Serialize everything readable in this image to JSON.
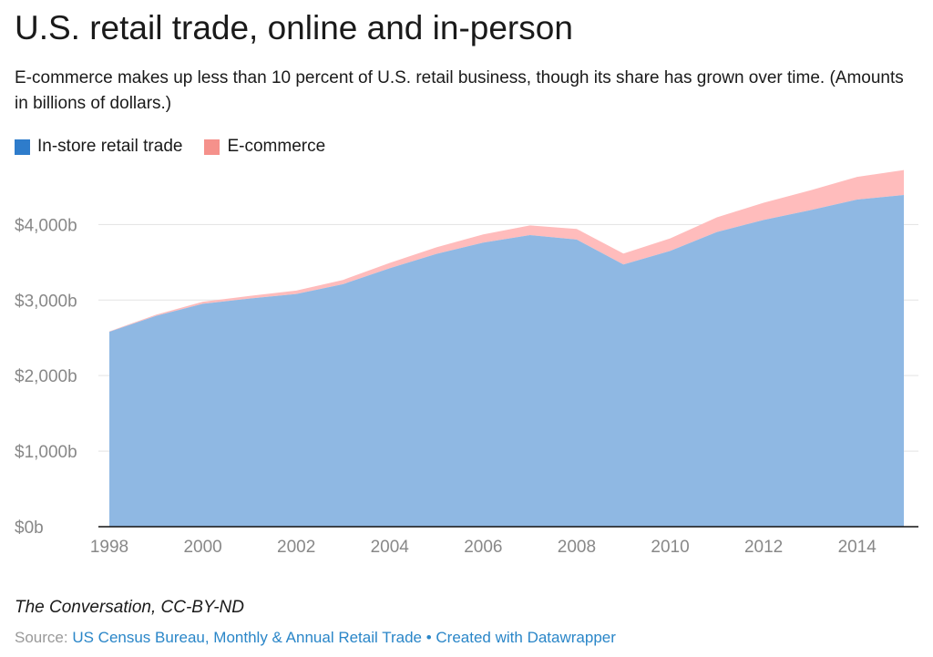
{
  "colors": {
    "instore": "#8fb8e3",
    "instore_legend": "#2e7ccb",
    "ecommerce": "#ffbcbc",
    "ecommerce_legend": "#f5918b",
    "grid": "#e3e3e3",
    "axis": "#111111"
  },
  "chart_data": {
    "type": "area",
    "stacked": true,
    "title": "U.S. retail trade, online and in-person",
    "subtitle": "E-commerce makes up less than 10 percent of U.S. retail business, though its share has grown over time. (Amounts in billions of dollars.)",
    "x": [
      1998,
      1999,
      2000,
      2001,
      2002,
      2003,
      2004,
      2005,
      2006,
      2007,
      2008,
      2009,
      2010,
      2011,
      2012,
      2013,
      2014,
      2015
    ],
    "series": [
      {
        "name": "In-store retail trade",
        "values": [
          2580,
          2790,
          2950,
          3020,
          3080,
          3210,
          3420,
          3610,
          3760,
          3860,
          3800,
          3470,
          3650,
          3900,
          4060,
          4190,
          4330,
          4390
        ]
      },
      {
        "name": "E-commerce",
        "values": [
          5,
          15,
          28,
          34,
          45,
          56,
          71,
          88,
          108,
          128,
          141,
          145,
          165,
          195,
          228,
          262,
          299,
          330
        ]
      }
    ],
    "ylim": [
      0,
      4800
    ],
    "yticks": [
      0,
      1000,
      2000,
      3000,
      4000
    ],
    "ytick_labels": [
      "$0b",
      "$1,000b",
      "$2,000b",
      "$3,000b",
      "$4,000b"
    ],
    "xticks": [
      1998,
      2000,
      2002,
      2004,
      2006,
      2008,
      2010,
      2012,
      2014
    ],
    "xtick_labels": [
      "1998",
      "2000",
      "2002",
      "2004",
      "2006",
      "2008",
      "2010",
      "2012",
      "2014"
    ],
    "grid": true,
    "legend": "top-left"
  },
  "footer": {
    "credit": "The Conversation, CC-BY-ND",
    "source_label": "Source:",
    "source_link": "US Census Bureau, Monthly & Annual Retail Trade",
    "separator": "•",
    "created_with": "Created with Datawrapper"
  }
}
